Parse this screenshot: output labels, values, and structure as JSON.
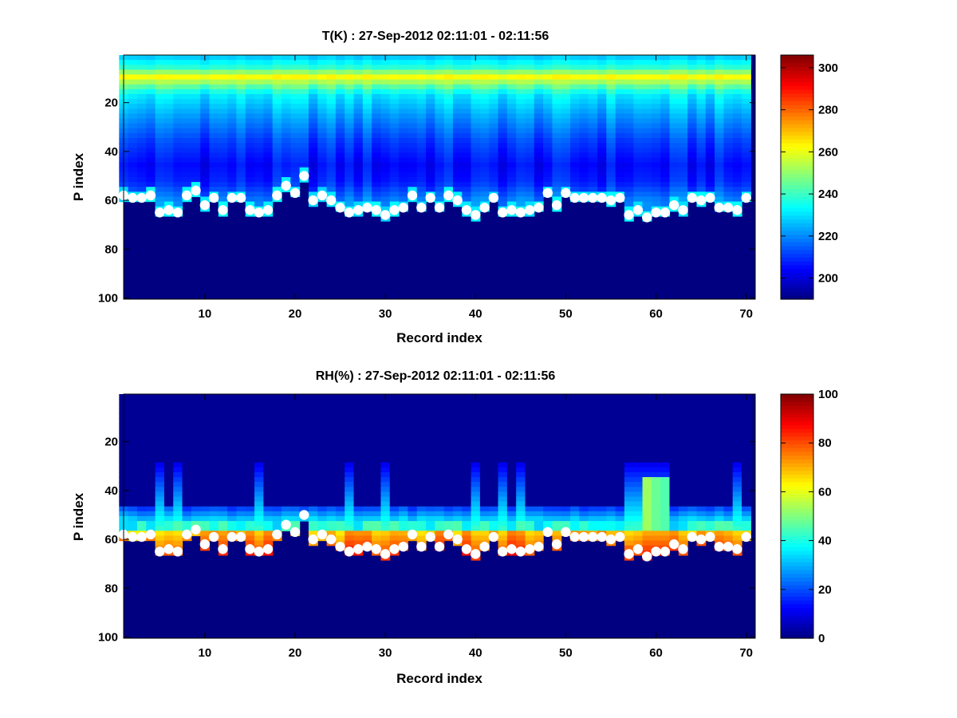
{
  "chart_data": [
    {
      "type": "heatmap",
      "title": "T(K) : 27-Sep-2012 02:11:01 - 02:11:56",
      "xlabel": "Record index",
      "ylabel": "P index",
      "xlim": [
        1,
        71
      ],
      "ylim": [
        100,
        1
      ],
      "y_reversed": true,
      "xticks": [
        10,
        20,
        30,
        40,
        50,
        60,
        70
      ],
      "yticks": [
        20,
        40,
        60,
        80,
        100
      ],
      "colormap": "jet",
      "clim": [
        190,
        306
      ],
      "colorbar_ticks": [
        200,
        220,
        240,
        260,
        280,
        300
      ],
      "below_surface_fill": 190,
      "field": {
        "description_levels": [
          1,
          5,
          9,
          12,
          16,
          25,
          35,
          45,
          52,
          60
        ],
        "values": [
          228,
          238,
          262,
          248,
          232,
          222,
          212,
          205,
          208,
          220
        ]
      },
      "markers": {
        "color": "#ffffff",
        "record_index": [
          1,
          2,
          3,
          4,
          5,
          6,
          7,
          8,
          9,
          10,
          11,
          12,
          13,
          14,
          15,
          16,
          17,
          18,
          19,
          20,
          21,
          22,
          23,
          24,
          25,
          26,
          27,
          28,
          29,
          30,
          31,
          32,
          33,
          34,
          35,
          36,
          37,
          38,
          39,
          40,
          41,
          42,
          43,
          44,
          45,
          46,
          47,
          48,
          49,
          50,
          51,
          52,
          53,
          54,
          55,
          56,
          57,
          58,
          59,
          60,
          61,
          62,
          63,
          64,
          65,
          66,
          67,
          68,
          69,
          70
        ],
        "p_index": [
          58,
          59,
          59,
          58,
          65,
          64,
          65,
          58,
          56,
          62,
          59,
          64,
          59,
          59,
          64,
          65,
          64,
          58,
          54,
          57,
          50,
          60,
          58,
          60,
          63,
          65,
          64,
          63,
          64,
          66,
          64,
          63,
          58,
          63,
          59,
          63,
          58,
          60,
          64,
          66,
          63,
          59,
          65,
          64,
          65,
          64,
          63,
          57,
          62,
          57,
          59,
          59,
          59,
          59,
          60,
          59,
          66,
          64,
          67,
          65,
          65,
          62,
          64,
          59,
          60,
          59,
          63,
          63,
          64,
          59
        ]
      }
    },
    {
      "type": "heatmap",
      "title": "RH(%) : 27-Sep-2012 02:11:01 - 02:11:56",
      "xlabel": "Record index",
      "ylabel": "P index",
      "xlim": [
        1,
        71
      ],
      "ylim": [
        100,
        1
      ],
      "y_reversed": true,
      "xticks": [
        10,
        20,
        30,
        40,
        50,
        60,
        70
      ],
      "yticks": [
        20,
        40,
        60,
        80,
        100
      ],
      "colormap": "jet",
      "clim": [
        0,
        100
      ],
      "colorbar_ticks": [
        0,
        20,
        40,
        60,
        80,
        100
      ],
      "below_surface_fill": 0,
      "moist_records": [
        5,
        7,
        16,
        26,
        30,
        40,
        43,
        45,
        57,
        58,
        59,
        60,
        61,
        69
      ],
      "markers": {
        "color": "#ffffff",
        "record_index": [
          1,
          2,
          3,
          4,
          5,
          6,
          7,
          8,
          9,
          10,
          11,
          12,
          13,
          14,
          15,
          16,
          17,
          18,
          19,
          20,
          21,
          22,
          23,
          24,
          25,
          26,
          27,
          28,
          29,
          30,
          31,
          32,
          33,
          34,
          35,
          36,
          37,
          38,
          39,
          40,
          41,
          42,
          43,
          44,
          45,
          46,
          47,
          48,
          49,
          50,
          51,
          52,
          53,
          54,
          55,
          56,
          57,
          58,
          59,
          60,
          61,
          62,
          63,
          64,
          65,
          66,
          67,
          68,
          69,
          70
        ],
        "p_index": [
          58,
          59,
          59,
          58,
          65,
          64,
          65,
          58,
          56,
          62,
          59,
          64,
          59,
          59,
          64,
          65,
          64,
          58,
          54,
          57,
          50,
          60,
          58,
          60,
          63,
          65,
          64,
          63,
          64,
          66,
          64,
          63,
          58,
          63,
          59,
          63,
          58,
          60,
          64,
          66,
          63,
          59,
          65,
          64,
          65,
          64,
          63,
          57,
          62,
          57,
          59,
          59,
          59,
          59,
          60,
          59,
          66,
          64,
          67,
          65,
          65,
          62,
          64,
          59,
          60,
          59,
          63,
          63,
          64,
          59
        ]
      }
    }
  ]
}
